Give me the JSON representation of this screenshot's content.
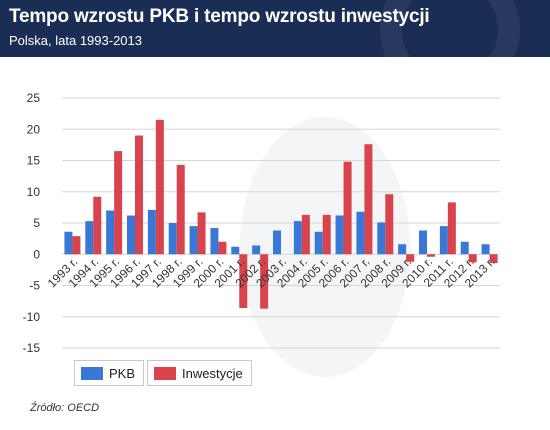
{
  "header": {
    "title": "Tempo wzrostu PKB i tempo wzrostu inwestycji",
    "subtitle": "Polska,  lata 1993-2013"
  },
  "source": "Źródło: OECD",
  "colors": {
    "header_bg": "#1a2d55",
    "pkb": "#3a78d8",
    "inwestycje": "#d9434b"
  },
  "chart_data": {
    "type": "bar",
    "title": "Tempo wzrostu PKB i tempo wzrostu inwestycji",
    "subtitle": "Polska,  lata 1993-2013",
    "categories": [
      "1993 r.",
      "1994 r.",
      "1995 r.",
      "1996 r.",
      "1997 r.",
      "1998 r.",
      "1999 r.",
      "2000 r.",
      "2001 r.",
      "2002 r.",
      "2003 r.",
      "2004 r.",
      "2005 r.",
      "2006 r.",
      "2007 r.",
      "2008 r.",
      "2009 r.",
      "2010 r.",
      "2011 r.",
      "2012 r.",
      "2013 r."
    ],
    "series": [
      {
        "name": "PKB",
        "color": "#3a78d8",
        "values": [
          3.6,
          5.3,
          7.0,
          6.2,
          7.1,
          5.0,
          4.5,
          4.2,
          1.2,
          1.4,
          3.8,
          5.3,
          3.6,
          6.2,
          6.8,
          5.1,
          1.6,
          3.8,
          4.5,
          2.0,
          1.6
        ]
      },
      {
        "name": "Inwestycje",
        "color": "#d9434b",
        "values": [
          2.9,
          9.2,
          16.5,
          19.0,
          21.5,
          14.3,
          6.7,
          2.0,
          -8.6,
          -8.7,
          0.0,
          6.3,
          6.3,
          14.8,
          17.6,
          9.6,
          -1.2,
          -0.4,
          8.3,
          -1.3,
          -1.4
        ]
      }
    ],
    "yticks": [
      "25",
      "20",
      "15",
      "10",
      "5",
      "0",
      "-5",
      "-10",
      "-15"
    ],
    "ylim": [
      -15,
      25
    ],
    "grid": true,
    "legend": "bottom-left"
  }
}
